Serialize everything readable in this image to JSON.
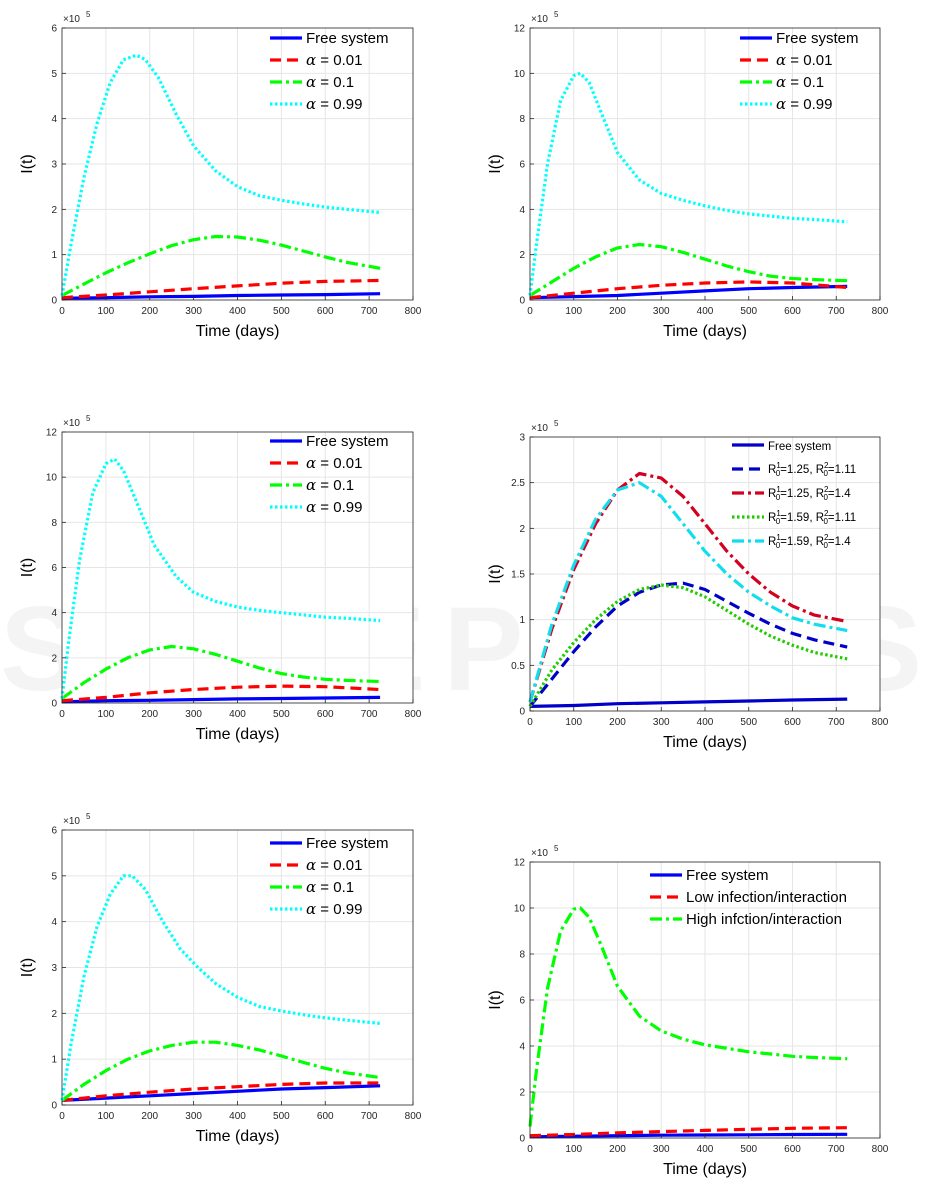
{
  "panels_common": {
    "xlabel": "Time (days)",
    "ylabel": "I(t)",
    "x_ticks": [
      "0",
      "100",
      "200",
      "300",
      "400",
      "500",
      "600",
      "700",
      "800"
    ],
    "exponent_label": "×10",
    "exponent_power": "5"
  },
  "watermark": {
    "logo_text": "SCITEPRESS",
    "tagline": "SCIENCE AND TECHNOLOGY PUBLICATIONS"
  },
  "colors": {
    "blue": "#0000ff",
    "red": "#ff0000",
    "green": "#00ff00",
    "cyan": "#00ffff",
    "darkred": "#d4001f",
    "navy": "#0000c8",
    "limegreen": "#22cc00",
    "aqua": "#11ddee"
  },
  "chart_data": [
    {
      "type": "line",
      "xlabel": "Time (days)",
      "ylabel": "I(t)",
      "y_scale_note": "×10^5",
      "xlim": [
        0,
        800
      ],
      "ylim": [
        0,
        6
      ],
      "y_ticks": [
        "0",
        "1",
        "2",
        "3",
        "4",
        "5",
        "6"
      ],
      "grid": true,
      "legend_position": "top-right",
      "series": [
        {
          "name": "Free system",
          "style": "solid",
          "color": "#0000ff",
          "x": [
            0,
            100,
            200,
            300,
            400,
            500,
            600,
            725
          ],
          "y": [
            0.04,
            0.05,
            0.07,
            0.08,
            0.1,
            0.11,
            0.12,
            0.14
          ]
        },
        {
          "name_prefix": "α",
          "name": "α = 0.01",
          "style": "dashed",
          "color": "#ff0000",
          "x": [
            0,
            100,
            200,
            300,
            400,
            500,
            600,
            725
          ],
          "y": [
            0.05,
            0.11,
            0.18,
            0.25,
            0.31,
            0.37,
            0.41,
            0.43
          ]
        },
        {
          "name": "α = 0.1",
          "style": "dashdot",
          "color": "#00ff00",
          "x": [
            0,
            50,
            100,
            150,
            200,
            250,
            300,
            350,
            400,
            450,
            500,
            550,
            600,
            650,
            725
          ],
          "y": [
            0.1,
            0.35,
            0.6,
            0.82,
            1.02,
            1.2,
            1.33,
            1.4,
            1.39,
            1.32,
            1.21,
            1.08,
            0.95,
            0.83,
            0.7
          ]
        },
        {
          "name": "α = 0.99",
          "style": "dotted",
          "color": "#00ffff",
          "x": [
            0,
            20,
            50,
            80,
            110,
            140,
            170,
            190,
            220,
            260,
            300,
            350,
            400,
            450,
            500,
            550,
            600,
            650,
            725
          ],
          "y": [
            0.1,
            1.2,
            2.7,
            3.9,
            4.8,
            5.3,
            5.4,
            5.3,
            4.9,
            4.1,
            3.4,
            2.85,
            2.5,
            2.3,
            2.2,
            2.12,
            2.05,
            2.0,
            1.93
          ]
        }
      ]
    },
    {
      "type": "line",
      "xlabel": "Time (days)",
      "ylabel": "I(t)",
      "y_scale_note": "×10^5",
      "xlim": [
        0,
        800
      ],
      "ylim": [
        0,
        12
      ],
      "y_ticks": [
        "0",
        "2",
        "4",
        "6",
        "8",
        "10",
        "12"
      ],
      "grid": true,
      "legend_position": "top-right",
      "series": [
        {
          "name": "Free system",
          "style": "solid",
          "color": "#0000ff",
          "x": [
            0,
            100,
            200,
            300,
            400,
            500,
            600,
            725
          ],
          "y": [
            0.1,
            0.15,
            0.2,
            0.3,
            0.4,
            0.5,
            0.55,
            0.6
          ]
        },
        {
          "name": "α = 0.01",
          "style": "dashed",
          "color": "#ff0000",
          "x": [
            0,
            100,
            200,
            300,
            400,
            500,
            600,
            725
          ],
          "y": [
            0.1,
            0.3,
            0.5,
            0.65,
            0.75,
            0.8,
            0.75,
            0.55
          ]
        },
        {
          "name": "α = 0.1",
          "style": "dashdot",
          "color": "#00ff00",
          "x": [
            0,
            50,
            100,
            150,
            200,
            250,
            300,
            350,
            400,
            450,
            500,
            550,
            600,
            650,
            725
          ],
          "y": [
            0.2,
            0.8,
            1.4,
            1.9,
            2.3,
            2.45,
            2.35,
            2.1,
            1.8,
            1.5,
            1.25,
            1.05,
            0.95,
            0.9,
            0.85
          ]
        },
        {
          "name": "α = 0.99",
          "style": "dotted",
          "color": "#00ffff",
          "x": [
            0,
            15,
            40,
            70,
            100,
            115,
            135,
            160,
            200,
            250,
            300,
            350,
            400,
            450,
            500,
            550,
            600,
            650,
            725
          ],
          "y": [
            0.2,
            2.5,
            6.0,
            8.8,
            9.9,
            10.0,
            9.6,
            8.4,
            6.5,
            5.3,
            4.7,
            4.4,
            4.15,
            3.95,
            3.8,
            3.7,
            3.6,
            3.55,
            3.45
          ]
        }
      ]
    },
    {
      "type": "line",
      "xlabel": "Time (days)",
      "ylabel": "I(t)",
      "y_scale_note": "×10^5",
      "xlim": [
        0,
        800
      ],
      "ylim": [
        0,
        12
      ],
      "y_ticks": [
        "0",
        "2",
        "4",
        "6",
        "8",
        "10",
        "12"
      ],
      "grid": true,
      "legend_position": "top-right",
      "series": [
        {
          "name": "Free system",
          "style": "solid",
          "color": "#0000ff",
          "x": [
            0,
            100,
            200,
            300,
            400,
            500,
            600,
            725
          ],
          "y": [
            0.05,
            0.1,
            0.12,
            0.15,
            0.18,
            0.2,
            0.22,
            0.25
          ]
        },
        {
          "name": "α = 0.01",
          "style": "dashed",
          "color": "#ff0000",
          "x": [
            0,
            100,
            200,
            300,
            400,
            500,
            600,
            725
          ],
          "y": [
            0.1,
            0.25,
            0.45,
            0.6,
            0.7,
            0.75,
            0.72,
            0.6
          ]
        },
        {
          "name": "α = 0.1",
          "style": "dashdot",
          "color": "#00ff00",
          "x": [
            0,
            50,
            100,
            150,
            200,
            250,
            300,
            350,
            400,
            450,
            500,
            550,
            600,
            650,
            725
          ],
          "y": [
            0.2,
            0.9,
            1.5,
            2.0,
            2.35,
            2.5,
            2.4,
            2.15,
            1.85,
            1.55,
            1.3,
            1.15,
            1.05,
            1.0,
            0.95
          ]
        },
        {
          "name": "α = 0.99",
          "style": "dotted",
          "color": "#00ffff",
          "x": [
            0,
            15,
            40,
            70,
            100,
            120,
            140,
            170,
            210,
            260,
            300,
            350,
            400,
            450,
            500,
            550,
            600,
            650,
            725
          ],
          "y": [
            0.2,
            2.7,
            6.3,
            9.3,
            10.6,
            10.8,
            10.3,
            8.9,
            7.0,
            5.6,
            4.9,
            4.5,
            4.25,
            4.1,
            4.0,
            3.9,
            3.8,
            3.75,
            3.65
          ]
        }
      ]
    },
    {
      "type": "line",
      "xlabel": "Time (days)",
      "ylabel": "I(t)",
      "y_scale_note": "×10^5",
      "xlim": [
        0,
        800
      ],
      "ylim": [
        0,
        3
      ],
      "y_ticks": [
        "0",
        "0.5",
        "1",
        "1.5",
        "2",
        "2.5",
        "3"
      ],
      "grid": true,
      "legend_position": "top-right",
      "series": [
        {
          "name": "Free system",
          "style": "solid",
          "color": "#0000c8",
          "x": [
            0,
            100,
            200,
            300,
            400,
            500,
            600,
            725
          ],
          "y": [
            0.05,
            0.06,
            0.08,
            0.09,
            0.1,
            0.11,
            0.12,
            0.13
          ]
        },
        {
          "name": "R0^1=1.25, R0^2=1.11",
          "label_parts": [
            "R",
            "1",
            "0",
            "=1.25, R",
            "2",
            "0",
            "=1.11"
          ],
          "style": "dashed",
          "color": "#0000c8",
          "x": [
            0,
            50,
            100,
            150,
            200,
            250,
            300,
            350,
            400,
            450,
            500,
            550,
            600,
            650,
            725
          ],
          "y": [
            0.05,
            0.35,
            0.65,
            0.92,
            1.15,
            1.3,
            1.38,
            1.4,
            1.33,
            1.2,
            1.07,
            0.95,
            0.85,
            0.78,
            0.7
          ]
        },
        {
          "name": "R0^1=1.25, R0^2=1.4",
          "label_parts": [
            "R",
            "1",
            "0",
            "=1.25, R",
            "2",
            "0",
            "=1.4"
          ],
          "style": "dashdot",
          "color": "#d4001f",
          "x": [
            0,
            50,
            100,
            150,
            200,
            250,
            300,
            350,
            400,
            450,
            500,
            550,
            600,
            650,
            725
          ],
          "y": [
            0.1,
            0.9,
            1.55,
            2.05,
            2.42,
            2.6,
            2.55,
            2.35,
            2.05,
            1.75,
            1.5,
            1.3,
            1.15,
            1.05,
            0.98
          ]
        },
        {
          "name": "R0^1=1.59, R0^2=1.11",
          "label_parts": [
            "R",
            "1",
            "0",
            "=1.59, R",
            "2",
            "0",
            "=1.11"
          ],
          "style": "dotted",
          "color": "#22cc00",
          "x": [
            0,
            50,
            100,
            150,
            200,
            250,
            300,
            350,
            400,
            450,
            500,
            550,
            600,
            650,
            725
          ],
          "y": [
            0.05,
            0.45,
            0.75,
            1.0,
            1.2,
            1.33,
            1.38,
            1.35,
            1.25,
            1.1,
            0.95,
            0.82,
            0.72,
            0.64,
            0.57
          ]
        },
        {
          "name": "R0^1=1.59, R0^2=1.4",
          "label_parts": [
            "R",
            "1",
            "0",
            "=1.59, R",
            "2",
            "0",
            "=1.4"
          ],
          "style": "dashdot",
          "color": "#11ddee",
          "x": [
            0,
            50,
            100,
            150,
            200,
            250,
            300,
            350,
            400,
            450,
            500,
            550,
            600,
            650,
            725
          ],
          "y": [
            0.1,
            0.95,
            1.6,
            2.1,
            2.42,
            2.5,
            2.35,
            2.05,
            1.75,
            1.5,
            1.3,
            1.15,
            1.02,
            0.95,
            0.88
          ]
        }
      ]
    },
    {
      "type": "line",
      "xlabel": "Time (days)",
      "ylabel": "I(t)",
      "y_scale_note": "×10^5",
      "xlim": [
        0,
        800
      ],
      "ylim": [
        0,
        6
      ],
      "y_ticks": [
        "0",
        "1",
        "2",
        "3",
        "4",
        "5",
        "6"
      ],
      "grid": true,
      "legend_position": "top-right",
      "series": [
        {
          "name": "Free system",
          "style": "solid",
          "color": "#0000ff",
          "x": [
            0,
            100,
            200,
            300,
            400,
            500,
            600,
            725
          ],
          "y": [
            0.1,
            0.15,
            0.2,
            0.25,
            0.3,
            0.35,
            0.38,
            0.42
          ]
        },
        {
          "name": "α = 0.01",
          "style": "dashed",
          "color": "#ff0000",
          "x": [
            0,
            100,
            200,
            300,
            400,
            500,
            600,
            725
          ],
          "y": [
            0.1,
            0.2,
            0.28,
            0.35,
            0.4,
            0.45,
            0.48,
            0.48
          ]
        },
        {
          "name": "α = 0.1",
          "style": "dashdot",
          "color": "#00ff00",
          "x": [
            0,
            50,
            100,
            150,
            200,
            250,
            300,
            350,
            400,
            450,
            500,
            550,
            600,
            650,
            725
          ],
          "y": [
            0.1,
            0.45,
            0.75,
            1.0,
            1.18,
            1.3,
            1.37,
            1.37,
            1.3,
            1.2,
            1.07,
            0.93,
            0.8,
            0.7,
            0.6
          ]
        },
        {
          "name": "α = 0.99",
          "style": "dotted",
          "color": "#00ffff",
          "x": [
            0,
            20,
            50,
            80,
            110,
            140,
            160,
            190,
            230,
            270,
            310,
            350,
            400,
            450,
            500,
            550,
            600,
            650,
            725
          ],
          "y": [
            0.1,
            1.3,
            2.8,
            3.9,
            4.6,
            5.0,
            5.0,
            4.7,
            4.0,
            3.4,
            3.0,
            2.65,
            2.35,
            2.15,
            2.05,
            1.97,
            1.9,
            1.85,
            1.78
          ]
        }
      ]
    },
    {
      "type": "line",
      "xlabel": "Time (days)",
      "ylabel": "I(t)",
      "y_scale_note": "×10^5",
      "xlim": [
        0,
        800
      ],
      "ylim": [
        0,
        12
      ],
      "y_ticks": [
        "0",
        "2",
        "4",
        "6",
        "8",
        "10",
        "12"
      ],
      "grid": true,
      "legend_position": "top-right",
      "series": [
        {
          "name": "Free system",
          "style": "solid",
          "color": "#0000ff",
          "x": [
            0,
            100,
            200,
            300,
            400,
            500,
            600,
            725
          ],
          "y": [
            0.05,
            0.08,
            0.1,
            0.12,
            0.13,
            0.14,
            0.15,
            0.16
          ]
        },
        {
          "name": "Low infection/interaction",
          "style": "dashed",
          "color": "#ff0000",
          "x": [
            0,
            100,
            200,
            300,
            400,
            500,
            600,
            725
          ],
          "y": [
            0.1,
            0.15,
            0.22,
            0.28,
            0.33,
            0.38,
            0.42,
            0.45
          ]
        },
        {
          "name": "High infction/interaction",
          "style": "dashdot",
          "color": "#00ff00",
          "x": [
            0,
            15,
            40,
            70,
            100,
            115,
            135,
            160,
            200,
            250,
            300,
            350,
            400,
            450,
            500,
            550,
            600,
            650,
            725
          ],
          "y": [
            0.5,
            3.0,
            6.5,
            9.0,
            9.95,
            10.0,
            9.6,
            8.5,
            6.6,
            5.3,
            4.65,
            4.3,
            4.05,
            3.9,
            3.75,
            3.65,
            3.55,
            3.5,
            3.45
          ]
        }
      ]
    }
  ]
}
